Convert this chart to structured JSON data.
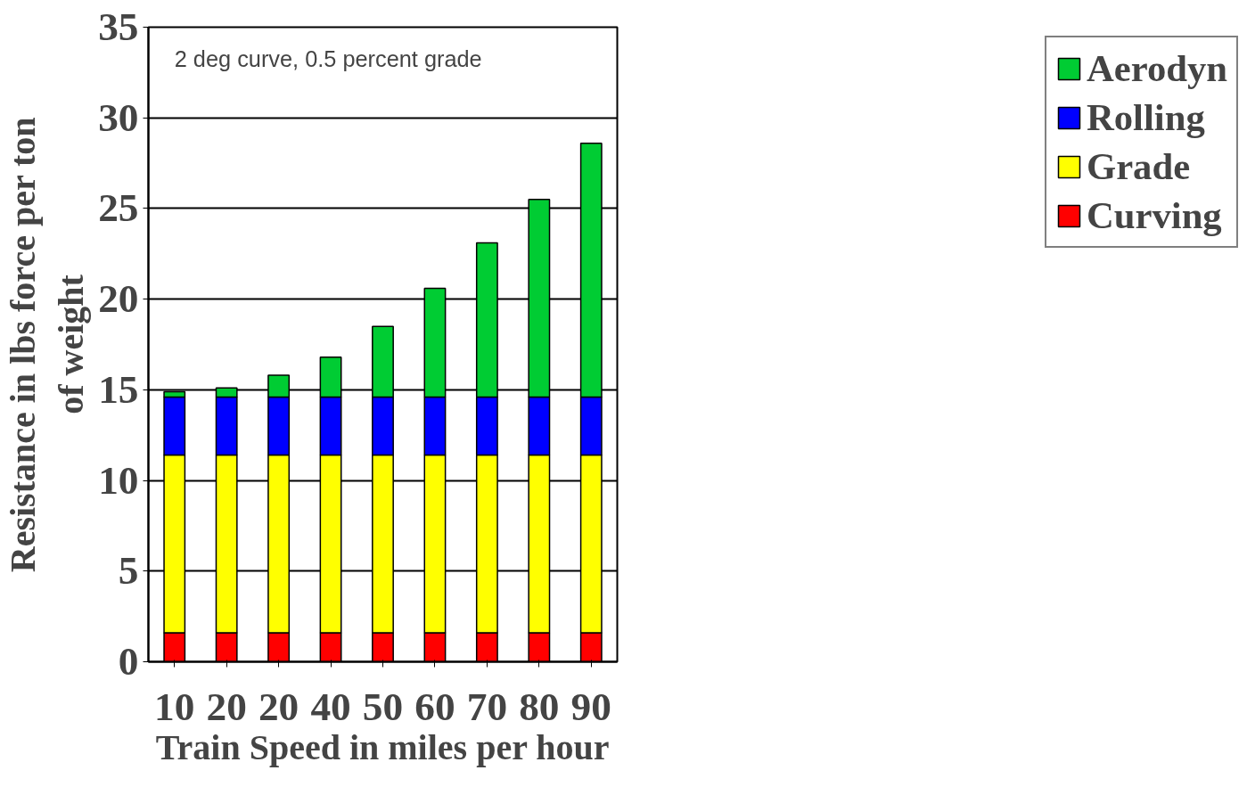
{
  "chart_data": {
    "type": "bar",
    "stacked": true,
    "xlabel": "Train Speed in miles per hour",
    "ylabel": "Resistance in lbs force per ton of weight",
    "annotations": [
      "2 deg curve, 0.5 percent grade"
    ],
    "categories": [
      "10",
      "20",
      "20",
      "40",
      "50",
      "60",
      "70",
      "80",
      "90"
    ],
    "series": [
      {
        "name": "Curving",
        "color": "#ff0000",
        "values": [
          1.6,
          1.6,
          1.6,
          1.6,
          1.6,
          1.6,
          1.6,
          1.6,
          1.6
        ]
      },
      {
        "name": "Grade",
        "color": "#ffff00",
        "values": [
          9.8,
          9.8,
          9.8,
          9.8,
          9.8,
          9.8,
          9.8,
          9.8,
          9.8
        ]
      },
      {
        "name": "Rolling",
        "color": "#0000ff",
        "values": [
          3.2,
          3.2,
          3.2,
          3.2,
          3.2,
          3.2,
          3.2,
          3.2,
          3.2
        ]
      },
      {
        "name": "Aerodyn",
        "color": "#00cc33",
        "values": [
          0.3,
          0.5,
          1.2,
          2.2,
          3.9,
          6.0,
          8.5,
          10.9,
          14.0
        ]
      }
    ],
    "ylim": [
      0,
      35
    ],
    "yticks": [
      0,
      5,
      10,
      15,
      20,
      25,
      30,
      35
    ],
    "grid": "y",
    "legend": "right"
  }
}
